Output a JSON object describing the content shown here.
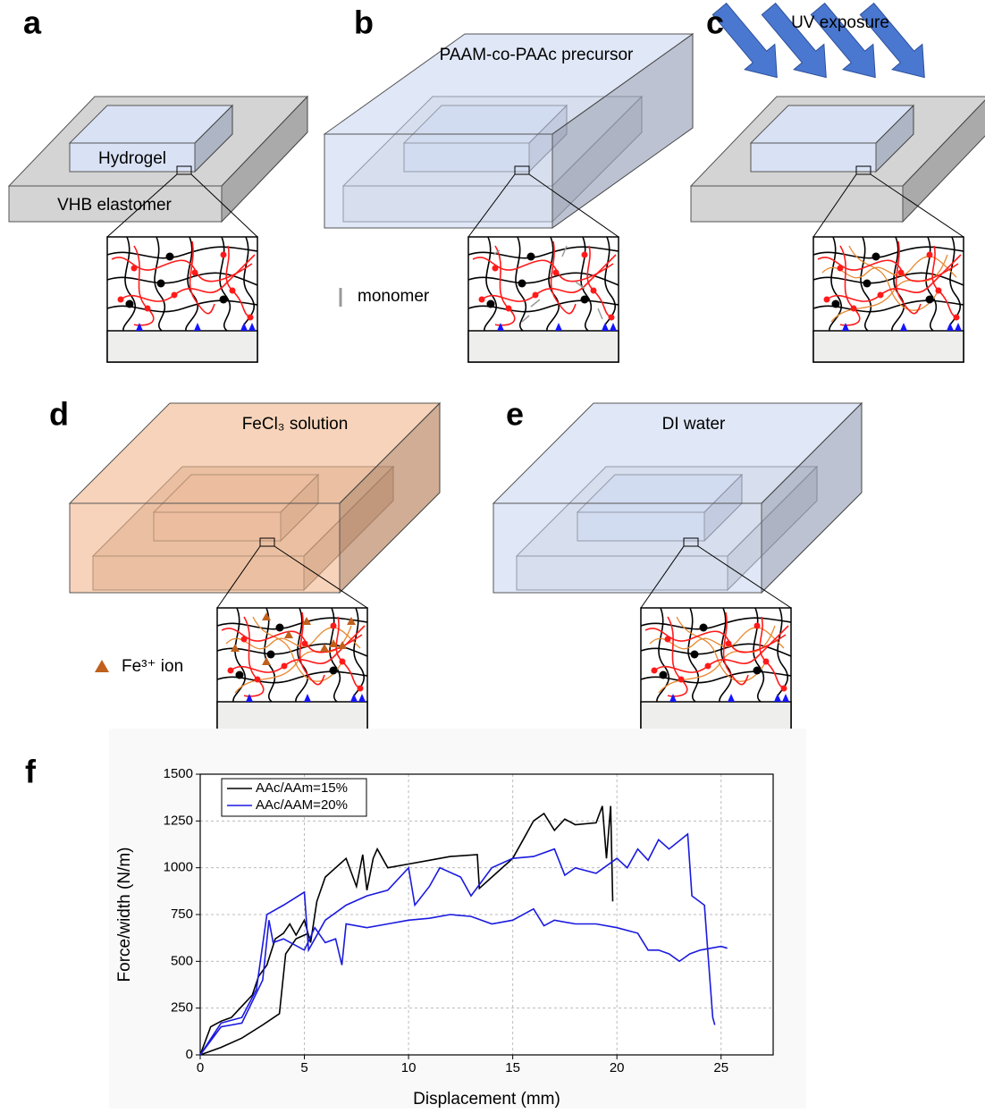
{
  "panel_labels": [
    "a",
    "b",
    "c",
    "d",
    "e",
    "f"
  ],
  "annotations": {
    "hydrogel": "Hydrogel",
    "vhb": "VHB elastomer",
    "precursor": "PAAM-co-PAAc precursor",
    "monomer": "monomer",
    "uv": "UV exposure",
    "fecl3": "FeCl₃ solution",
    "water": "DI water",
    "fe_ion": "Fe³⁺ ion"
  },
  "chart_data": {
    "type": "line",
    "xlabel": "Displacement (mm)",
    "ylabel": "Force/width (N/m)",
    "xlim": [
      0,
      27.5
    ],
    "ylim": [
      0,
      1500
    ],
    "xticks": [
      0,
      5,
      10,
      15,
      20,
      25
    ],
    "yticks": [
      0,
      250,
      500,
      750,
      1000,
      1250,
      1500
    ],
    "grid": true,
    "legend": "upper left",
    "series": [
      {
        "name": "AAc/AAm=15%",
        "color": "#000000",
        "x": [
          0,
          1,
          2,
          3,
          3.8,
          4.1,
          4.6,
          5.2,
          null,
          0,
          0.5,
          1,
          1.5,
          2,
          2.5,
          2.8,
          3.2,
          3.6,
          4,
          4.3,
          4.6,
          5,
          5.3,
          5.6,
          6,
          6.5,
          7,
          7.5,
          7.8,
          8,
          8.3,
          8.5,
          9,
          10,
          11,
          12,
          13.3,
          13.4,
          14,
          15,
          15.5,
          16,
          16.5,
          17,
          17.5,
          18,
          19,
          19.3,
          19.5,
          19.7,
          19.8
        ],
        "values": [
          0,
          40,
          90,
          160,
          220,
          540,
          620,
          650,
          null,
          0,
          150,
          180,
          200,
          260,
          320,
          420,
          480,
          620,
          650,
          700,
          640,
          720,
          600,
          820,
          950,
          1000,
          1050,
          900,
          1070,
          880,
          1050,
          1100,
          1000,
          1020,
          1040,
          1060,
          1070,
          890,
          950,
          1050,
          1150,
          1250,
          1290,
          1200,
          1260,
          1230,
          1240,
          1330,
          1050,
          1330,
          820
        ]
      },
      {
        "name": "AAc/AAM=20%",
        "color": "#1a1adf",
        "x": [
          0,
          1,
          2,
          3,
          3.3,
          3.5,
          4,
          5,
          5.5,
          6,
          6.5,
          6.8,
          7,
          8,
          9,
          10,
          11,
          12,
          13,
          14,
          15,
          16,
          16.5,
          17,
          18,
          19,
          20,
          21,
          21.5,
          22,
          22.5,
          23,
          23.5,
          24,
          24.5,
          25,
          25.3,
          null,
          0,
          1,
          2,
          2.7,
          3.2,
          4,
          5,
          5.2,
          5.5,
          6,
          7,
          8,
          9,
          10,
          10.3,
          11,
          11.5,
          12.5,
          13,
          14,
          15,
          16,
          17,
          17.5,
          18,
          19,
          20,
          20.5,
          21,
          21.5,
          22,
          22.5,
          23.4,
          23.6,
          24.2,
          24.4,
          24.6,
          24.7
        ],
        "values": [
          0,
          150,
          170,
          400,
          720,
          600,
          620,
          560,
          680,
          600,
          620,
          480,
          700,
          680,
          700,
          720,
          730,
          750,
          740,
          700,
          720,
          780,
          690,
          720,
          700,
          700,
          680,
          650,
          560,
          560,
          540,
          500,
          540,
          560,
          570,
          580,
          570,
          null,
          0,
          170,
          200,
          350,
          750,
          800,
          870,
          560,
          620,
          720,
          800,
          850,
          880,
          1000,
          800,
          900,
          1000,
          950,
          850,
          1000,
          1050,
          1060,
          1100,
          960,
          1000,
          970,
          1050,
          1000,
          1100,
          1040,
          1150,
          1100,
          1180,
          850,
          800,
          500,
          200,
          160
        ]
      }
    ]
  }
}
